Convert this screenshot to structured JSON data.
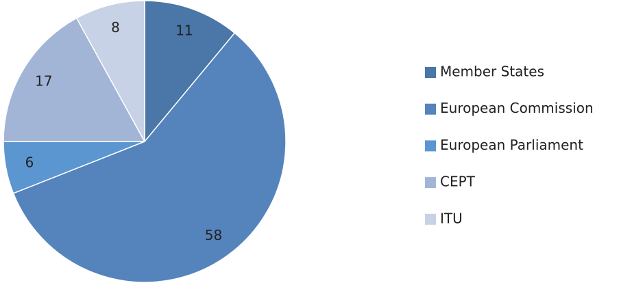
{
  "chart_data": {
    "type": "pie",
    "categories": [
      "Member States",
      "European Commission",
      "European Parliament",
      "CEPT",
      "ITU"
    ],
    "values": [
      11,
      58,
      6,
      17,
      8
    ],
    "colors": [
      "#4a76a8",
      "#5584bd",
      "#5b96d0",
      "#a3b5d6",
      "#c7d2e6"
    ],
    "legend": "right"
  }
}
